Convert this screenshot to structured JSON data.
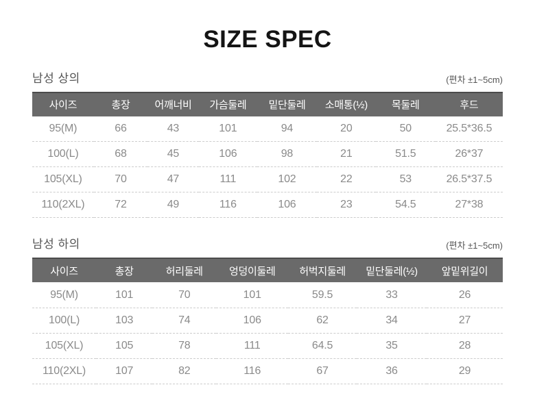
{
  "page": {
    "title": "SIZE SPEC"
  },
  "theme": {
    "header_bg": "#6a6a6a",
    "header_text": "#ffffff",
    "cell_text": "#8a8a8a"
  },
  "sections": [
    {
      "label": "남성 상의",
      "note": "(편차 ±1~5cm)",
      "columns": [
        "사이즈",
        "총장",
        "어깨너비",
        "가슴둘레",
        "밑단둘레",
        "소매통(½)",
        "목둘레",
        "후드"
      ],
      "rows": [
        [
          "95(M)",
          "66",
          "43",
          "101",
          "94",
          "20",
          "50",
          "25.5*36.5"
        ],
        [
          "100(L)",
          "68",
          "45",
          "106",
          "98",
          "21",
          "51.5",
          "26*37"
        ],
        [
          "105(XL)",
          "70",
          "47",
          "111",
          "102",
          "22",
          "53",
          "26.5*37.5"
        ],
        [
          "110(2XL)",
          "72",
          "49",
          "116",
          "106",
          "23",
          "54.5",
          "27*38"
        ]
      ]
    },
    {
      "label": "남성 하의",
      "note": "(편차 ±1~5cm)",
      "columns": [
        "사이즈",
        "총장",
        "허리둘레",
        "엉덩이둘레",
        "허벅지둘레",
        "밑단둘레(½)",
        "앞밑위길이"
      ],
      "rows": [
        [
          "95(M)",
          "101",
          "70",
          "101",
          "59.5",
          "33",
          "26"
        ],
        [
          "100(L)",
          "103",
          "74",
          "106",
          "62",
          "34",
          "27"
        ],
        [
          "105(XL)",
          "105",
          "78",
          "111",
          "64.5",
          "35",
          "28"
        ],
        [
          "110(2XL)",
          "107",
          "82",
          "116",
          "67",
          "36",
          "29"
        ]
      ]
    }
  ]
}
